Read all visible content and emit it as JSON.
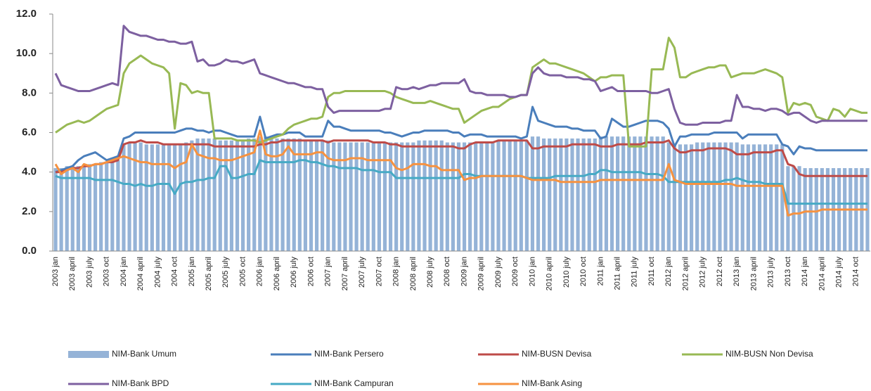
{
  "chart_data": {
    "type": "combo",
    "categories": [
      "2003 jan",
      null,
      null,
      "2003 april",
      null,
      null,
      "2003 july",
      null,
      null,
      "2003 oct",
      null,
      null,
      "2004 jan",
      null,
      null,
      "2004 april",
      null,
      null,
      "2004 july",
      null,
      null,
      "2004 oct",
      null,
      null,
      "2005 jan",
      null,
      null,
      "2005 april",
      null,
      null,
      "2005 july",
      null,
      null,
      "2005 oct",
      null,
      null,
      "2006 jan",
      null,
      null,
      "2006 april",
      null,
      null,
      "2006 july",
      null,
      null,
      "2006 oct",
      null,
      null,
      "2007 jan",
      null,
      null,
      "2007 april",
      null,
      null,
      "2007 july",
      null,
      null,
      "2007 oct",
      null,
      null,
      "2008 jan",
      null,
      null,
      "2008 april",
      null,
      null,
      "2008 july",
      null,
      null,
      "2008 oct",
      null,
      null,
      "2009 jan",
      null,
      null,
      "2009 april",
      null,
      null,
      "2009 july",
      null,
      null,
      "2009 oct",
      null,
      null,
      "2010 jan",
      null,
      null,
      "2010 april",
      null,
      null,
      "2010 july",
      null,
      null,
      "2010 oct",
      null,
      null,
      "2011 jan",
      null,
      null,
      "2011 april",
      null,
      null,
      "2011 july",
      null,
      null,
      "2011 oct",
      null,
      null,
      "2012 jan",
      null,
      null,
      "2012 april",
      null,
      null,
      "2012 july",
      null,
      null,
      "2012 oct",
      null,
      null,
      "2013 jan",
      null,
      null,
      "2013 april",
      null,
      null,
      "2013 july",
      null,
      null,
      "2013 oct",
      null,
      null,
      "2014 jan",
      null,
      null,
      "2014 april",
      null,
      null,
      "2014 july",
      null,
      null,
      "2014 oct",
      null,
      null
    ],
    "ylim": [
      0,
      12
    ],
    "yticks": [
      {
        "value": 0,
        "label": "0.0"
      },
      {
        "value": 2,
        "label": "2.0"
      },
      {
        "value": 4,
        "label": "4.0"
      },
      {
        "value": 6,
        "label": "6.0"
      },
      {
        "value": 8,
        "label": "8.0"
      },
      {
        "value": 10,
        "label": "10.0"
      },
      {
        "value": 12,
        "label": "12.0"
      }
    ],
    "grid": false,
    "legend": "bottom",
    "series": [
      {
        "name": "NIM-Bank Umum",
        "type": "bar",
        "color": "#95b3d7",
        "values": [
          4.2,
          4.2,
          4.3,
          4.3,
          4.3,
          4.4,
          4.4,
          4.4,
          4.5,
          4.5,
          4.6,
          4.6,
          5.4,
          5.5,
          5.5,
          5.5,
          5.4,
          5.4,
          5.4,
          5.4,
          5.4,
          5.4,
          5.4,
          5.5,
          5.6,
          5.7,
          5.7,
          5.7,
          5.7,
          5.6,
          5.6,
          5.6,
          5.6,
          5.6,
          5.7,
          5.7,
          5.8,
          5.8,
          5.7,
          5.7,
          5.7,
          5.7,
          5.7,
          5.7,
          5.6,
          5.6,
          5.6,
          5.6,
          5.6,
          5.5,
          5.5,
          5.5,
          5.5,
          5.5,
          5.5,
          5.5,
          5.5,
          5.5,
          5.5,
          5.5,
          5.5,
          5.5,
          5.5,
          5.5,
          5.6,
          5.6,
          5.6,
          5.6,
          5.6,
          5.5,
          5.5,
          5.5,
          5.5,
          5.5,
          5.5,
          5.5,
          5.5,
          5.5,
          5.6,
          5.6,
          5.6,
          5.6,
          5.6,
          5.6,
          5.8,
          5.8,
          5.7,
          5.7,
          5.7,
          5.7,
          5.7,
          5.7,
          5.7,
          5.7,
          5.7,
          5.7,
          5.8,
          5.8,
          5.8,
          5.8,
          5.8,
          5.8,
          5.8,
          5.8,
          5.8,
          5.8,
          5.8,
          5.8,
          5.5,
          5.4,
          5.4,
          5.4,
          5.4,
          5.5,
          5.5,
          5.5,
          5.5,
          5.5,
          5.5,
          5.5,
          5.5,
          5.4,
          5.4,
          5.4,
          5.4,
          5.4,
          5.4,
          5.4,
          5.4,
          4.3,
          4.3,
          4.3,
          4.2,
          4.2,
          4.2,
          4.2,
          4.2,
          4.2,
          4.2,
          4.2,
          4.2,
          4.2,
          4.2,
          4.2
        ]
      },
      {
        "name": "NIM-Bank Persero",
        "type": "line",
        "color": "#4a7ebb",
        "values": [
          4.0,
          4.1,
          4.2,
          4.3,
          4.6,
          4.8,
          4.9,
          5.0,
          4.8,
          4.6,
          4.7,
          4.8,
          5.7,
          5.8,
          6.0,
          6.0,
          6.0,
          6.0,
          6.0,
          6.0,
          6.0,
          6.0,
          6.1,
          6.2,
          6.2,
          6.1,
          6.1,
          6.0,
          6.1,
          6.1,
          6.0,
          5.9,
          5.8,
          5.8,
          5.8,
          5.8,
          6.8,
          5.7,
          5.8,
          5.9,
          5.9,
          6.0,
          6.0,
          6.0,
          5.8,
          5.8,
          5.8,
          5.8,
          6.6,
          6.3,
          6.3,
          6.2,
          6.1,
          6.1,
          6.1,
          6.1,
          6.1,
          6.1,
          6.0,
          6.0,
          5.9,
          5.8,
          5.9,
          6.0,
          6.0,
          6.1,
          6.1,
          6.1,
          6.1,
          6.1,
          6.0,
          6.0,
          5.8,
          5.9,
          5.9,
          5.9,
          5.8,
          5.8,
          5.8,
          5.8,
          5.8,
          5.8,
          5.7,
          5.8,
          7.3,
          6.6,
          6.5,
          6.4,
          6.3,
          6.3,
          6.3,
          6.2,
          6.2,
          6.1,
          6.1,
          6.1,
          5.7,
          5.8,
          6.7,
          6.5,
          6.3,
          6.3,
          6.4,
          6.5,
          6.6,
          6.6,
          6.6,
          6.5,
          6.2,
          5.3,
          5.8,
          5.8,
          5.9,
          5.9,
          5.9,
          5.9,
          6.0,
          6.0,
          6.0,
          6.0,
          6.0,
          5.7,
          5.9,
          5.9,
          5.9,
          5.9,
          5.9,
          5.9,
          5.4,
          5.3,
          4.9,
          5.3,
          5.2,
          5.2,
          5.1,
          5.1,
          5.1,
          5.1,
          5.1,
          5.1,
          5.1,
          5.1,
          5.1,
          5.1
        ]
      },
      {
        "name": "NIM-BUSN Devisa",
        "type": "line",
        "color": "#be4b48",
        "values": [
          4.0,
          4.0,
          4.1,
          4.2,
          4.2,
          4.3,
          4.3,
          4.4,
          4.4,
          4.5,
          4.5,
          4.6,
          5.4,
          5.5,
          5.5,
          5.6,
          5.5,
          5.5,
          5.5,
          5.4,
          5.4,
          5.4,
          5.4,
          5.4,
          5.4,
          5.4,
          5.4,
          5.4,
          5.3,
          5.3,
          5.3,
          5.3,
          5.3,
          5.3,
          5.3,
          5.3,
          5.4,
          5.4,
          5.5,
          5.5,
          5.6,
          5.6,
          5.6,
          5.6,
          5.6,
          5.6,
          5.6,
          5.6,
          5.5,
          5.6,
          5.6,
          5.6,
          5.6,
          5.6,
          5.6,
          5.6,
          5.5,
          5.5,
          5.5,
          5.4,
          5.4,
          5.3,
          5.3,
          5.3,
          5.3,
          5.3,
          5.3,
          5.3,
          5.3,
          5.3,
          5.3,
          5.2,
          5.2,
          5.4,
          5.5,
          5.5,
          5.5,
          5.5,
          5.6,
          5.6,
          5.6,
          5.6,
          5.6,
          5.6,
          5.2,
          5.2,
          5.3,
          5.3,
          5.3,
          5.3,
          5.3,
          5.4,
          5.4,
          5.4,
          5.4,
          5.4,
          5.3,
          5.3,
          5.3,
          5.4,
          5.4,
          5.4,
          5.4,
          5.4,
          5.5,
          5.5,
          5.5,
          5.5,
          5.6,
          5.2,
          5.0,
          5.0,
          5.1,
          5.1,
          5.1,
          5.2,
          5.2,
          5.2,
          5.2,
          5.1,
          4.9,
          4.9,
          4.9,
          5.0,
          5.0,
          5.0,
          5.0,
          5.1,
          5.1,
          4.4,
          4.3,
          3.9,
          3.8,
          3.8,
          3.8,
          3.8,
          3.8,
          3.8,
          3.8,
          3.8,
          3.8,
          3.8,
          3.8,
          3.8
        ]
      },
      {
        "name": "NIM-BUSN Non Devisa",
        "type": "line",
        "color": "#98b954",
        "values": [
          6.0,
          6.2,
          6.4,
          6.5,
          6.6,
          6.5,
          6.6,
          6.8,
          7.0,
          7.2,
          7.3,
          7.4,
          9.0,
          9.5,
          9.7,
          9.9,
          9.7,
          9.5,
          9.4,
          9.3,
          9.0,
          6.2,
          8.5,
          8.4,
          8.0,
          8.1,
          8.0,
          8.0,
          5.7,
          5.7,
          5.7,
          5.7,
          5.6,
          5.6,
          5.6,
          5.6,
          5.5,
          5.6,
          5.7,
          5.8,
          5.9,
          6.2,
          6.4,
          6.5,
          6.6,
          6.7,
          6.7,
          6.8,
          7.8,
          8.0,
          8.0,
          8.1,
          8.1,
          8.1,
          8.1,
          8.1,
          8.1,
          8.1,
          8.1,
          8.0,
          7.8,
          7.7,
          7.6,
          7.5,
          7.5,
          7.5,
          7.6,
          7.5,
          7.4,
          7.3,
          7.2,
          7.2,
          6.5,
          6.7,
          6.9,
          7.1,
          7.2,
          7.3,
          7.3,
          7.5,
          7.7,
          7.8,
          7.9,
          7.9,
          9.3,
          9.5,
          9.7,
          9.5,
          9.5,
          9.4,
          9.3,
          9.2,
          9.1,
          9.0,
          8.8,
          8.6,
          8.8,
          8.8,
          8.9,
          8.9,
          8.9,
          5.3,
          5.3,
          5.3,
          5.3,
          9.2,
          9.2,
          9.2,
          10.8,
          10.3,
          8.8,
          8.8,
          9.0,
          9.1,
          9.2,
          9.3,
          9.3,
          9.4,
          9.4,
          8.8,
          8.9,
          9.0,
          9.0,
          9.0,
          9.1,
          9.2,
          9.1,
          9.0,
          8.8,
          7.0,
          7.5,
          7.4,
          7.5,
          7.4,
          6.8,
          6.7,
          6.6,
          7.2,
          7.1,
          6.8,
          7.2,
          7.1,
          7.0,
          7.0
        ]
      },
      {
        "name": "NIM-Bank BPD",
        "type": "line",
        "color": "#7d60a0",
        "values": [
          9.0,
          8.4,
          8.3,
          8.2,
          8.1,
          8.1,
          8.1,
          8.2,
          8.3,
          8.4,
          8.5,
          8.4,
          11.4,
          11.1,
          11.0,
          10.9,
          10.9,
          10.8,
          10.7,
          10.7,
          10.6,
          10.6,
          10.5,
          10.5,
          10.6,
          9.6,
          9.7,
          9.4,
          9.4,
          9.5,
          9.7,
          9.6,
          9.6,
          9.5,
          9.6,
          9.7,
          9.0,
          8.9,
          8.8,
          8.7,
          8.6,
          8.5,
          8.5,
          8.4,
          8.3,
          8.3,
          8.2,
          8.2,
          7.3,
          7.0,
          7.1,
          7.1,
          7.1,
          7.1,
          7.1,
          7.1,
          7.1,
          7.1,
          7.2,
          7.2,
          8.3,
          8.2,
          8.2,
          8.3,
          8.2,
          8.3,
          8.4,
          8.4,
          8.5,
          8.5,
          8.5,
          8.5,
          8.7,
          8.1,
          8.0,
          8.0,
          7.9,
          7.9,
          7.9,
          7.9,
          7.8,
          7.8,
          7.9,
          7.9,
          9.0,
          9.3,
          9.0,
          8.9,
          8.9,
          8.9,
          8.8,
          8.8,
          8.8,
          8.7,
          8.7,
          8.6,
          8.1,
          8.2,
          8.3,
          8.1,
          8.1,
          8.1,
          8.1,
          8.1,
          8.1,
          8.0,
          8.0,
          8.1,
          8.2,
          7.2,
          6.5,
          6.4,
          6.4,
          6.4,
          6.5,
          6.5,
          6.5,
          6.5,
          6.6,
          6.6,
          7.9,
          7.3,
          7.3,
          7.2,
          7.2,
          7.1,
          7.2,
          7.2,
          7.1,
          6.9,
          7.0,
          7.0,
          6.8,
          6.6,
          6.5,
          6.6,
          6.6,
          6.6,
          6.6,
          6.6,
          6.6,
          6.6,
          6.6,
          6.6
        ]
      },
      {
        "name": "NIM-Bank Campuran",
        "type": "line",
        "color": "#46aac5",
        "values": [
          3.8,
          3.7,
          3.7,
          3.7,
          3.7,
          3.7,
          3.7,
          3.6,
          3.6,
          3.6,
          3.6,
          3.5,
          3.4,
          3.4,
          3.3,
          3.4,
          3.3,
          3.3,
          3.4,
          3.4,
          3.4,
          2.9,
          3.4,
          3.5,
          3.5,
          3.6,
          3.6,
          3.7,
          3.7,
          4.3,
          4.3,
          3.7,
          3.7,
          3.8,
          3.9,
          3.9,
          4.6,
          4.5,
          4.5,
          4.5,
          4.5,
          4.5,
          4.5,
          4.6,
          4.6,
          4.5,
          4.5,
          4.4,
          4.3,
          4.3,
          4.2,
          4.2,
          4.2,
          4.2,
          4.1,
          4.1,
          4.1,
          4.0,
          4.0,
          4.0,
          3.7,
          3.7,
          3.7,
          3.7,
          3.7,
          3.7,
          3.7,
          3.7,
          3.7,
          3.7,
          3.7,
          3.7,
          3.9,
          3.9,
          3.8,
          3.8,
          3.8,
          3.8,
          3.8,
          3.8,
          3.8,
          3.8,
          3.8,
          3.7,
          3.7,
          3.7,
          3.7,
          3.7,
          3.8,
          3.8,
          3.8,
          3.8,
          3.8,
          3.8,
          3.9,
          3.9,
          4.1,
          4.1,
          4.0,
          4.0,
          4.0,
          4.0,
          4.0,
          4.0,
          3.9,
          3.9,
          3.9,
          3.8,
          3.5,
          3.5,
          3.5,
          3.5,
          3.5,
          3.5,
          3.5,
          3.5,
          3.5,
          3.5,
          3.6,
          3.6,
          3.7,
          3.6,
          3.5,
          3.5,
          3.5,
          3.4,
          3.4,
          3.4,
          3.4,
          2.4,
          2.4,
          2.4,
          2.4,
          2.4,
          2.4,
          2.4,
          2.4,
          2.4,
          2.4,
          2.4,
          2.4,
          2.4,
          2.4,
          2.4
        ]
      },
      {
        "name": "NIM-Bank Asing",
        "type": "line",
        "color": "#f69240",
        "values": [
          4.4,
          3.9,
          4.1,
          4.2,
          4.0,
          4.4,
          4.3,
          4.4,
          4.4,
          4.5,
          4.6,
          4.7,
          4.8,
          4.7,
          4.6,
          4.5,
          4.5,
          4.4,
          4.4,
          4.4,
          4.4,
          4.2,
          4.4,
          4.5,
          5.4,
          4.9,
          4.8,
          4.7,
          4.7,
          4.6,
          4.6,
          4.6,
          4.7,
          4.8,
          4.9,
          5.0,
          6.1,
          4.9,
          4.8,
          4.8,
          4.9,
          5.3,
          4.9,
          4.9,
          4.9,
          4.9,
          5.0,
          5.0,
          4.7,
          4.6,
          4.6,
          4.6,
          4.7,
          4.7,
          4.7,
          4.6,
          4.6,
          4.6,
          4.6,
          4.6,
          4.2,
          4.1,
          4.2,
          4.4,
          4.4,
          4.4,
          4.3,
          4.3,
          4.1,
          4.1,
          4.1,
          4.1,
          3.6,
          3.7,
          3.7,
          3.8,
          3.8,
          3.8,
          3.8,
          3.8,
          3.8,
          3.8,
          3.8,
          3.7,
          3.6,
          3.6,
          3.6,
          3.6,
          3.6,
          3.5,
          3.5,
          3.5,
          3.5,
          3.5,
          3.5,
          3.5,
          3.6,
          3.6,
          3.6,
          3.6,
          3.6,
          3.6,
          3.6,
          3.6,
          3.6,
          3.6,
          3.6,
          3.6,
          4.4,
          3.6,
          3.5,
          3.4,
          3.4,
          3.4,
          3.4,
          3.4,
          3.4,
          3.4,
          3.4,
          3.4,
          3.3,
          3.3,
          3.3,
          3.3,
          3.3,
          3.3,
          3.3,
          3.3,
          3.3,
          1.8,
          1.9,
          1.9,
          2.0,
          2.0,
          2.0,
          2.1,
          2.1,
          2.1,
          2.1,
          2.1,
          2.1,
          2.1,
          2.1,
          2.1
        ]
      }
    ]
  }
}
